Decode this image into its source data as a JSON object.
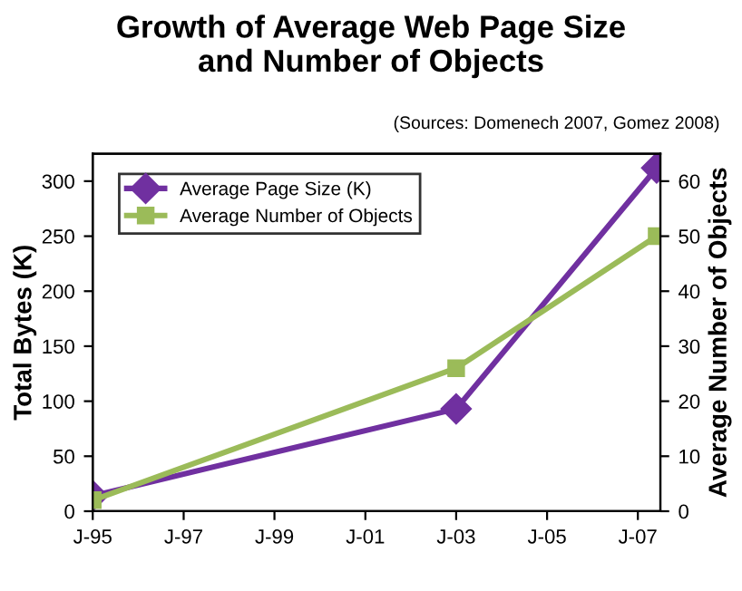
{
  "chart_data": {
    "type": "line",
    "title": "Growth of Average Web Page Size\nand Number of Objects",
    "subtitle": "(Sources: Domenech 2007, Gomez 2008)",
    "ylabel": "Total Bytes (K)",
    "y2label": "Average Number of Objects",
    "x": [
      "1995-01",
      "2003-01",
      "2007-06"
    ],
    "series": [
      {
        "name": "Average Page Size (K)",
        "color": "#7030a0",
        "marker": "diamond",
        "values": [
          14,
          93,
          312
        ]
      },
      {
        "name": "Average Number of Objects",
        "color": "#9bbb59",
        "marker": "square",
        "axis": "y2",
        "values": [
          2,
          26,
          50
        ]
      }
    ],
    "xlim": [
      "1995-01",
      "2007-07"
    ],
    "xticks": [
      {
        "value": "1995-01",
        "label": "J-95"
      },
      {
        "value": "1997-01",
        "label": "J-97"
      },
      {
        "value": "1999-01",
        "label": "J-99"
      },
      {
        "value": "2001-01",
        "label": "J-01"
      },
      {
        "value": "2003-01",
        "label": "J-03"
      },
      {
        "value": "2005-01",
        "label": "J-05"
      },
      {
        "value": "2007-01",
        "label": "J-07"
      }
    ],
    "ylim": [
      0,
      325
    ],
    "yticks": [
      0,
      50,
      100,
      150,
      200,
      250,
      300
    ],
    "y2lim": [
      0,
      65
    ],
    "y2ticks": [
      0,
      10,
      20,
      30,
      40,
      50,
      60
    ],
    "grid": false,
    "legend": "top left"
  }
}
